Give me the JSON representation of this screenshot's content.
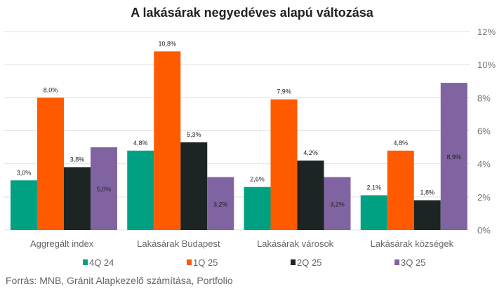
{
  "chart_data": {
    "type": "bar",
    "title": "A lakásárak negyedéves alapú változása",
    "categories": [
      "Aggregált index",
      "Lakásárak Budapest",
      "Lakásárak városok",
      "Lakásárak községek"
    ],
    "series": [
      {
        "name": "4Q 24",
        "color": "#00a082",
        "values": [
          3.0,
          4.8,
          2.6,
          2.1
        ],
        "labels": [
          "3,0%",
          "4,8%",
          "2,6%",
          "2,1%"
        ]
      },
      {
        "name": "1Q 25",
        "color": "#ff5a00",
        "values": [
          8.0,
          10.8,
          7.9,
          4.8
        ],
        "labels": [
          "8,0%",
          "10,8%",
          "7,9%",
          "4,8%"
        ]
      },
      {
        "name": "2Q 25",
        "color": "#1c2523",
        "values": [
          3.8,
          5.3,
          4.2,
          1.8
        ],
        "labels": [
          "3,8%",
          "5,3%",
          "4,2%",
          "1,8%"
        ]
      },
      {
        "name": "3Q 25",
        "color": "#8064a2",
        "values": [
          5.0,
          3.2,
          3.2,
          8.9
        ],
        "labels": [
          "5,0%",
          "3,2%",
          "3,2%",
          "8,9%"
        ]
      }
    ],
    "ylim": [
      0,
      12
    ],
    "yticks": [
      "0%",
      "2%",
      "4%",
      "6%",
      "8%",
      "10%",
      "12%"
    ],
    "grid": true,
    "legend": "bottom"
  },
  "source": "Forrás: MNB, Gránit Alapkezelő számítása, Portfolio"
}
